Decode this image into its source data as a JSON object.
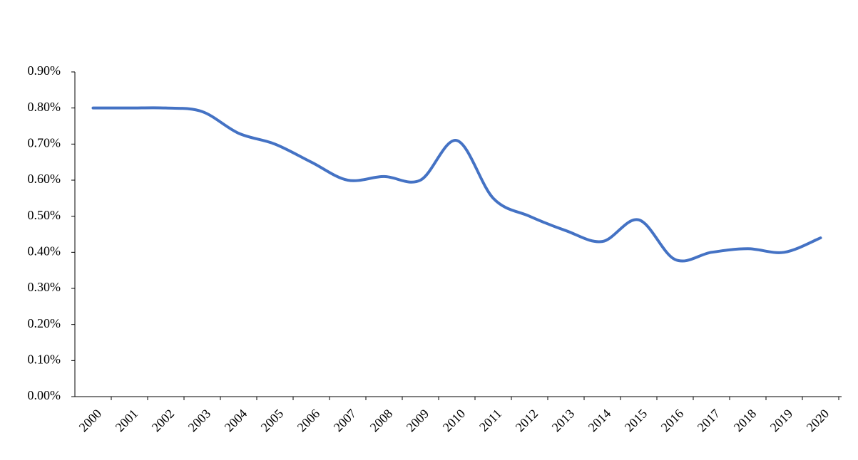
{
  "chart_data": {
    "type": "line",
    "categories": [
      "2000",
      "2001",
      "2002",
      "2003",
      "2004",
      "2005",
      "2006",
      "2007",
      "2008",
      "2009",
      "2010",
      "2011",
      "2012",
      "2013",
      "2014",
      "2015",
      "2016",
      "2017",
      "2018",
      "2019",
      "2020"
    ],
    "series": [
      {
        "color": "#4472c4",
        "values": [
          0.8,
          0.8,
          0.8,
          0.79,
          0.73,
          0.7,
          0.65,
          0.6,
          0.61,
          0.6,
          0.71,
          0.55,
          0.5,
          0.46,
          0.43,
          0.49,
          0.38,
          0.4,
          0.41,
          0.4,
          0.44
        ]
      }
    ],
    "ylim": [
      0,
      0.9
    ],
    "yticks": [
      {
        "value": 0,
        "label": "0.00%"
      },
      {
        "value": 0.1,
        "label": "0.10%"
      },
      {
        "value": 0.2,
        "label": "0.20%"
      },
      {
        "value": 0.3,
        "label": "0.30%"
      },
      {
        "value": 0.4,
        "label": "0.40%"
      },
      {
        "value": 0.5,
        "label": "0.50%"
      },
      {
        "value": 0.6,
        "label": "0.60%"
      },
      {
        "value": 0.7,
        "label": "0.70%"
      },
      {
        "value": 0.8,
        "label": "0.80%"
      },
      {
        "value": 0.9,
        "label": "0.90%"
      }
    ],
    "grid": false
  }
}
